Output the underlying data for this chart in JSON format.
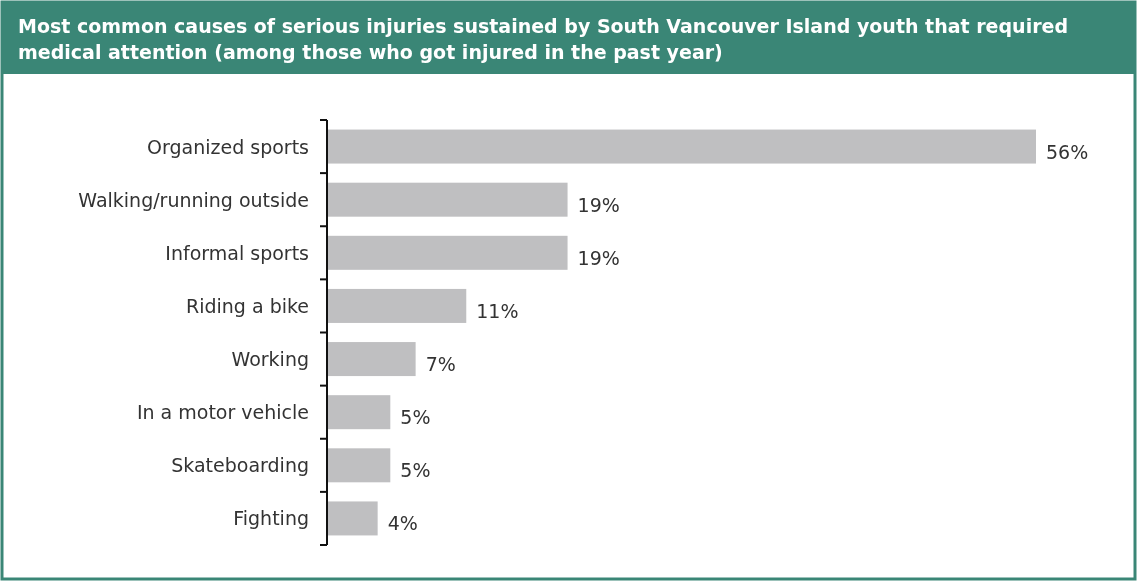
{
  "chart_data": {
    "type": "bar",
    "orientation": "horizontal",
    "title": "Most common causes of serious injuries sustained by South Vancouver Island youth that required medical attention (among those who got injured in the past year)",
    "categories": [
      "Organized sports",
      "Walking/running outside",
      "Informal sports",
      "Riding a bike",
      "Working",
      "In a motor vehicle",
      "Skateboarding",
      "Fighting"
    ],
    "values": [
      56,
      19,
      19,
      11,
      7,
      5,
      5,
      4
    ],
    "value_labels": [
      "56%",
      "19%",
      "19%",
      "11%",
      "7%",
      "5%",
      "5%",
      "4%"
    ],
    "color": "#bfbfc1"
  }
}
